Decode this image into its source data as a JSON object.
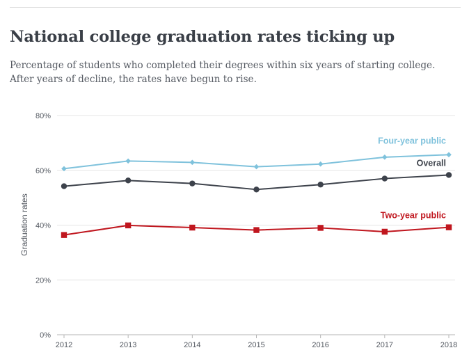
{
  "title": "National college graduation rates ticking up",
  "subtitle": "Percentage of students who completed their degrees within six years of starting college. After years of decline, the rates have begun to rise.",
  "chart_data": {
    "type": "line",
    "ylabel": "Graduation rates",
    "xlabel": "",
    "ylim": [
      0,
      80
    ],
    "yticks": [
      "0%",
      "20%",
      "40%",
      "60%",
      "80%"
    ],
    "y_tick_values": [
      0,
      20,
      40,
      60,
      80
    ],
    "x": [
      "2012",
      "2013",
      "2014",
      "2015",
      "2016",
      "2017",
      "2018"
    ],
    "grid": true,
    "series": [
      {
        "name": "Four-year public",
        "color": "#7fc2dc",
        "marker": "diamond",
        "values": [
          60.6,
          63.4,
          62.9,
          61.3,
          62.3,
          64.8,
          65.7
        ]
      },
      {
        "name": "Overall",
        "color": "#3d424b",
        "marker": "circle",
        "values": [
          54.2,
          56.3,
          55.2,
          53.0,
          54.8,
          57.0,
          58.3
        ]
      },
      {
        "name": "Two-year public",
        "color": "#c0161e",
        "marker": "square",
        "values": [
          36.4,
          39.9,
          39.1,
          38.2,
          39.0,
          37.6,
          39.2
        ]
      }
    ]
  }
}
